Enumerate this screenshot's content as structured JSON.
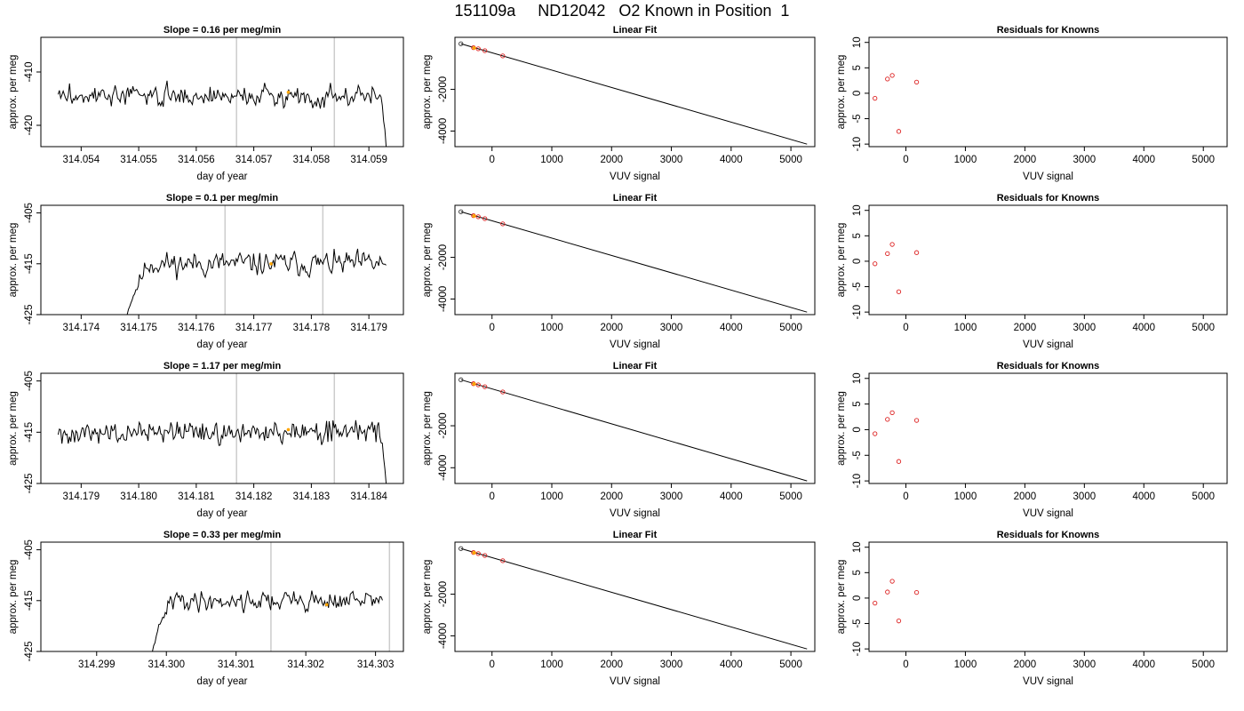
{
  "figure": {
    "title": "151109a     ND12042   O2 Known in Position  1"
  },
  "colors": {
    "trace": "#000000",
    "marker_gray": "#cccccc",
    "highlight": "#ffa500",
    "point_red": "#dd2222",
    "point_dark": "#333333"
  },
  "chart_data": [
    {
      "type": "line",
      "row": 0,
      "col": 0,
      "title": "Slope =  0.16  per meg/min",
      "xlabel": "day of year",
      "ylabel": "approx. per meg",
      "xlim": [
        314.0533,
        314.0596
      ],
      "ylim": [
        -424,
        -403.5
      ],
      "xticks": [
        314.054,
        314.055,
        314.056,
        314.057,
        314.058,
        314.059
      ],
      "xtick_labels": [
        "314.054",
        "314.055",
        "314.056",
        "314.057",
        "314.058",
        "314.059"
      ],
      "yticks": [
        -420,
        -410
      ],
      "ytick_labels": [
        "-420",
        "-410"
      ],
      "vlines": [
        314.0567,
        314.0584
      ],
      "highlight": {
        "x": 314.0576,
        "y": -413.8
      },
      "trace": {
        "x_start": 314.0536,
        "x_end": 314.0593,
        "n": 260,
        "mean": -414.5,
        "amp": 2.3,
        "seed": 3,
        "start_tail": {
          "fraction": 0.0,
          "from": 0
        },
        "end_tail": {
          "fraction": 0.012,
          "to": -424
        }
      }
    },
    {
      "type": "scatter",
      "row": 0,
      "col": 1,
      "title": "Linear Fit",
      "xlabel": "VUV signal",
      "ylabel": "approx. per meg",
      "xlim": [
        -620,
        5400
      ],
      "ylim": [
        -4750,
        500
      ],
      "xticks": [
        0,
        1000,
        2000,
        3000,
        4000,
        5000
      ],
      "xtick_labels": [
        "0",
        "1000",
        "2000",
        "3000",
        "4000",
        "5000"
      ],
      "yticks": [
        -4000,
        -2000
      ],
      "ytick_labels": [
        "-4000",
        "-2000"
      ],
      "fit": {
        "x": [
          -520,
          5270
        ],
        "y": [
          190,
          -4630
        ]
      },
      "points": [
        {
          "x": -520,
          "y": 190
        },
        {
          "x": -310,
          "y": 5
        },
        {
          "x": -230,
          "y": -50
        },
        {
          "x": -120,
          "y": -140
        },
        {
          "x": 180,
          "y": -390
        }
      ],
      "highlight": {
        "x": -300,
        "y": -10
      }
    },
    {
      "type": "scatter",
      "row": 0,
      "col": 2,
      "title": "Residuals for Knowns",
      "xlabel": "VUV signal",
      "ylabel": "approx. per meg",
      "xlim": [
        -620,
        5400
      ],
      "ylim": [
        -10.5,
        11
      ],
      "xticks": [
        0,
        1000,
        2000,
        3000,
        4000,
        5000
      ],
      "xtick_labels": [
        "0",
        "1000",
        "2000",
        "3000",
        "4000",
        "5000"
      ],
      "yticks": [
        -10,
        -5,
        0,
        5,
        10
      ],
      "ytick_labels": [
        "-10",
        "-5",
        "0",
        "5",
        "10"
      ],
      "points": [
        {
          "x": -520,
          "y": -1
        },
        {
          "x": -310,
          "y": 2.8
        },
        {
          "x": -230,
          "y": 3.5
        },
        {
          "x": -120,
          "y": -7.5
        },
        {
          "x": 180,
          "y": 2.2
        }
      ]
    },
    {
      "type": "line",
      "row": 1,
      "col": 0,
      "title": "Slope =  0.1  per meg/min",
      "xlabel": "day of year",
      "ylabel": "approx. per meg",
      "xlim": [
        314.1733,
        314.1796
      ],
      "ylim": [
        -425,
        -403.5
      ],
      "xticks": [
        314.174,
        314.175,
        314.176,
        314.177,
        314.178,
        314.179
      ],
      "xtick_labels": [
        "314.174",
        "314.175",
        "314.176",
        "314.177",
        "314.178",
        "314.179"
      ],
      "yticks": [
        -425,
        -415,
        -405
      ],
      "ytick_labels": [
        "-425",
        "-415",
        "-405"
      ],
      "vlines": [
        314.1765,
        314.1782
      ],
      "highlight": {
        "x": 314.1773,
        "y": -415
      },
      "trace": {
        "x_start": 314.1748,
        "x_end": 314.1793,
        "n": 210,
        "mean": -415,
        "amp": 2.8,
        "seed": 11,
        "start_tail": {
          "fraction": 0.08,
          "from": -425
        },
        "end_tail": {
          "fraction": 0.0,
          "to": 0
        }
      }
    },
    {
      "type": "scatter",
      "row": 1,
      "col": 1,
      "title": "Linear Fit",
      "xlabel": "VUV signal",
      "ylabel": "approx. per meg",
      "xlim": [
        -620,
        5400
      ],
      "ylim": [
        -4750,
        500
      ],
      "xticks": [
        0,
        1000,
        2000,
        3000,
        4000,
        5000
      ],
      "xtick_labels": [
        "0",
        "1000",
        "2000",
        "3000",
        "4000",
        "5000"
      ],
      "yticks": [
        -4000,
        -2000
      ],
      "ytick_labels": [
        "-4000",
        "-2000"
      ],
      "fit": {
        "x": [
          -520,
          5270
        ],
        "y": [
          190,
          -4630
        ]
      },
      "points": [
        {
          "x": -520,
          "y": 190
        },
        {
          "x": -310,
          "y": 5
        },
        {
          "x": -230,
          "y": -50
        },
        {
          "x": -120,
          "y": -140
        },
        {
          "x": 180,
          "y": -390
        }
      ],
      "highlight": {
        "x": -300,
        "y": -10
      }
    },
    {
      "type": "scatter",
      "row": 1,
      "col": 2,
      "title": "Residuals for Knowns",
      "xlabel": "VUV signal",
      "ylabel": "approx. per meg",
      "xlim": [
        -620,
        5400
      ],
      "ylim": [
        -10.5,
        11
      ],
      "xticks": [
        0,
        1000,
        2000,
        3000,
        4000,
        5000
      ],
      "xtick_labels": [
        "0",
        "1000",
        "2000",
        "3000",
        "4000",
        "5000"
      ],
      "yticks": [
        -10,
        -5,
        0,
        5,
        10
      ],
      "ytick_labels": [
        "-10",
        "-5",
        "0",
        "5",
        "10"
      ],
      "points": [
        {
          "x": -520,
          "y": -0.5
        },
        {
          "x": -310,
          "y": 1.5
        },
        {
          "x": -230,
          "y": 3.3
        },
        {
          "x": -120,
          "y": -6
        },
        {
          "x": 180,
          "y": 1.7
        }
      ]
    },
    {
      "type": "line",
      "row": 2,
      "col": 0,
      "title": "Slope =  1.17  per meg/min",
      "xlabel": "day of year",
      "ylabel": "approx. per meg",
      "xlim": [
        314.1783,
        314.1846
      ],
      "ylim": [
        -425,
        -403.5
      ],
      "xticks": [
        314.179,
        314.18,
        314.181,
        314.182,
        314.183,
        314.184
      ],
      "xtick_labels": [
        "314.179",
        "314.180",
        "314.181",
        "314.182",
        "314.183",
        "314.184"
      ],
      "yticks": [
        -425,
        -415,
        -405
      ],
      "ytick_labels": [
        "-425",
        "-415",
        "-405"
      ],
      "vlines": [
        314.1817,
        314.1834
      ],
      "highlight": {
        "x": 314.1826,
        "y": -414.5
      },
      "trace": {
        "x_start": 314.1786,
        "x_end": 314.1843,
        "n": 260,
        "mean": -415,
        "amp": 2.8,
        "seed": 27,
        "start_tail": {
          "fraction": 0.0,
          "from": 0
        },
        "end_tail": {
          "fraction": 0.012,
          "to": -425
        }
      }
    },
    {
      "type": "scatter",
      "row": 2,
      "col": 1,
      "title": "Linear Fit",
      "xlabel": "VUV signal",
      "ylabel": "approx. per meg",
      "xlim": [
        -620,
        5400
      ],
      "ylim": [
        -4750,
        500
      ],
      "xticks": [
        0,
        1000,
        2000,
        3000,
        4000,
        5000
      ],
      "xtick_labels": [
        "0",
        "1000",
        "2000",
        "3000",
        "4000",
        "5000"
      ],
      "yticks": [
        -4000,
        -2000
      ],
      "ytick_labels": [
        "-4000",
        "-2000"
      ],
      "fit": {
        "x": [
          -520,
          5270
        ],
        "y": [
          190,
          -4630
        ]
      },
      "points": [
        {
          "x": -520,
          "y": 190
        },
        {
          "x": -310,
          "y": 5
        },
        {
          "x": -230,
          "y": -50
        },
        {
          "x": -120,
          "y": -140
        },
        {
          "x": 180,
          "y": -390
        }
      ],
      "highlight": {
        "x": -300,
        "y": -10
      }
    },
    {
      "type": "scatter",
      "row": 2,
      "col": 2,
      "title": "Residuals for Knowns",
      "xlabel": "VUV signal",
      "ylabel": "approx. per meg",
      "xlim": [
        -620,
        5400
      ],
      "ylim": [
        -10.5,
        11
      ],
      "xticks": [
        0,
        1000,
        2000,
        3000,
        4000,
        5000
      ],
      "xtick_labels": [
        "0",
        "1000",
        "2000",
        "3000",
        "4000",
        "5000"
      ],
      "yticks": [
        -10,
        -5,
        0,
        5,
        10
      ],
      "ytick_labels": [
        "-10",
        "-5",
        "0",
        "5",
        "10"
      ],
      "points": [
        {
          "x": -520,
          "y": -0.8
        },
        {
          "x": -310,
          "y": 2
        },
        {
          "x": -230,
          "y": 3.3
        },
        {
          "x": -120,
          "y": -6.2
        },
        {
          "x": 180,
          "y": 1.8
        }
      ]
    },
    {
      "type": "line",
      "row": 3,
      "col": 0,
      "title": "Slope =  0.33  per meg/min",
      "xlabel": "day of year",
      "ylabel": "approx. per meg",
      "xlim": [
        314.2982,
        314.3034
      ],
      "ylim": [
        -425,
        -403.5
      ],
      "xticks": [
        314.299,
        314.3,
        314.301,
        314.302,
        314.303
      ],
      "xtick_labels": [
        "314.299",
        "314.300",
        "314.301",
        "314.302",
        "314.303"
      ],
      "yticks": [
        -425,
        -415,
        -405
      ],
      "ytick_labels": [
        "-425",
        "-415",
        "-405"
      ],
      "vlines": [
        314.3015,
        314.3032
      ],
      "highlight": {
        "x": 314.3023,
        "y": -415.8
      },
      "trace": {
        "x_start": 314.2998,
        "x_end": 314.3031,
        "n": 180,
        "mean": -415,
        "amp": 2.4,
        "seed": 41,
        "start_tail": {
          "fraction": 0.08,
          "from": -425
        },
        "end_tail": {
          "fraction": 0.0,
          "to": 0
        }
      }
    },
    {
      "type": "scatter",
      "row": 3,
      "col": 1,
      "title": "Linear Fit",
      "xlabel": "VUV signal",
      "ylabel": "approx. per meg",
      "xlim": [
        -620,
        5400
      ],
      "ylim": [
        -4750,
        500
      ],
      "xticks": [
        0,
        1000,
        2000,
        3000,
        4000,
        5000
      ],
      "xtick_labels": [
        "0",
        "1000",
        "2000",
        "3000",
        "4000",
        "5000"
      ],
      "yticks": [
        -4000,
        -2000
      ],
      "ytick_labels": [
        "-4000",
        "-2000"
      ],
      "fit": {
        "x": [
          -520,
          5270
        ],
        "y": [
          190,
          -4630
        ]
      },
      "points": [
        {
          "x": -520,
          "y": 190
        },
        {
          "x": -310,
          "y": 5
        },
        {
          "x": -230,
          "y": -50
        },
        {
          "x": -120,
          "y": -140
        },
        {
          "x": 180,
          "y": -390
        }
      ],
      "highlight": {
        "x": -300,
        "y": -10
      }
    },
    {
      "type": "scatter",
      "row": 3,
      "col": 2,
      "title": "Residuals for Knowns",
      "xlabel": "VUV signal",
      "ylabel": "approx. per meg",
      "xlim": [
        -620,
        5400
      ],
      "ylim": [
        -10.5,
        11
      ],
      "xticks": [
        0,
        1000,
        2000,
        3000,
        4000,
        5000
      ],
      "xtick_labels": [
        "0",
        "1000",
        "2000",
        "3000",
        "4000",
        "5000"
      ],
      "yticks": [
        -10,
        -5,
        0,
        5,
        10
      ],
      "ytick_labels": [
        "-10",
        "-5",
        "0",
        "5",
        "10"
      ],
      "points": [
        {
          "x": -520,
          "y": -1
        },
        {
          "x": -310,
          "y": 1.2
        },
        {
          "x": -230,
          "y": 3.3
        },
        {
          "x": -120,
          "y": -4.5
        },
        {
          "x": 180,
          "y": 1.1
        }
      ]
    }
  ]
}
